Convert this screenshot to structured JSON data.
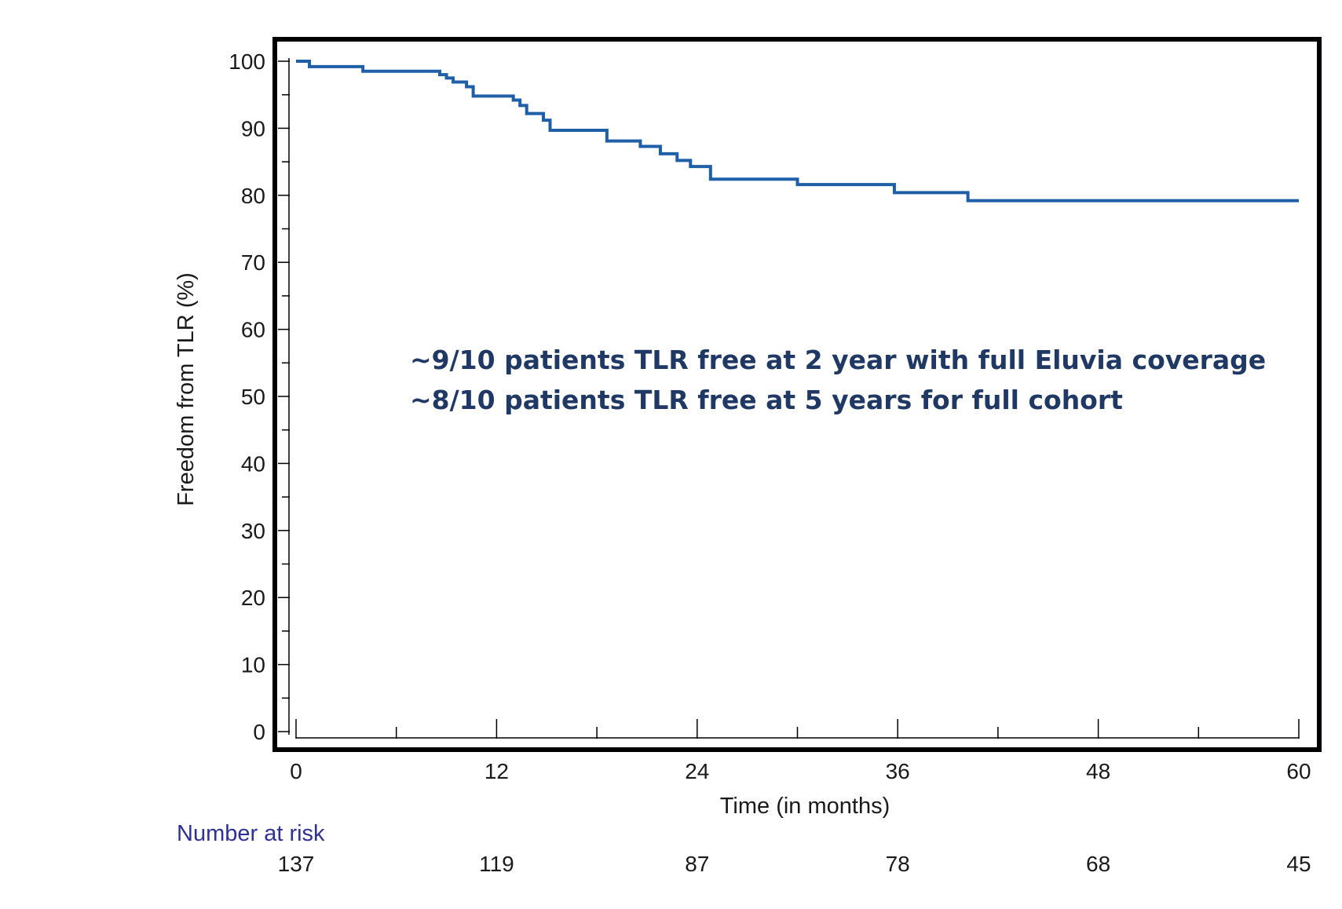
{
  "chart_data": {
    "type": "line",
    "subtype": "kaplan-meier",
    "title": "",
    "xlabel": "Time (in months)",
    "ylabel": "Freedom from TLR (%)",
    "xlim": [
      0,
      60
    ],
    "ylim": [
      0,
      100
    ],
    "x_ticks": [
      0,
      12,
      24,
      36,
      48,
      60
    ],
    "x_tick_labels": [
      "0",
      "12",
      "24",
      "36",
      "48",
      "60"
    ],
    "y_ticks": [
      0,
      10,
      20,
      30,
      40,
      50,
      60,
      70,
      80,
      90,
      100
    ],
    "y_tick_labels": [
      "0",
      "10",
      "20",
      "30",
      "40",
      "50",
      "60",
      "70",
      "80",
      "90",
      "100"
    ],
    "grid": false,
    "color": "#1f5fa8",
    "series": [
      {
        "name": "Freedom from TLR",
        "x": [
          0,
          0.8,
          4,
          8.6,
          9,
          9.4,
          10.2,
          10.6,
          13,
          13.4,
          13.8,
          14.8,
          15.2,
          18.6,
          20.6,
          21.8,
          22.8,
          23.6,
          24.8,
          30,
          35.8,
          40.2,
          60
        ],
        "y": [
          100,
          99.2,
          98.5,
          98,
          97.5,
          96.9,
          96.2,
          94.8,
          94.2,
          93.4,
          92.2,
          91.2,
          89.7,
          88.1,
          87.3,
          86.2,
          85.2,
          84.3,
          82.4,
          81.6,
          80.4,
          79.2,
          79.2
        ]
      }
    ],
    "annotations": [
      "~9/10 patients TLR free at 2 year with full Eluvia coverage",
      "~8/10 patients TLR free at 5 years for full cohort"
    ],
    "number_at_risk": {
      "title": "Number at risk",
      "times": [
        0,
        12,
        24,
        36,
        48,
        60
      ],
      "values": [
        "137",
        "119",
        "87",
        "78",
        "68",
        "45"
      ]
    }
  }
}
